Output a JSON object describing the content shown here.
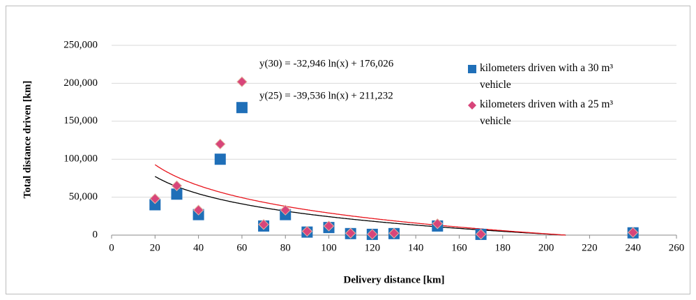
{
  "chart_data": {
    "type": "scatter",
    "xlabel": "Delivery distance [km]",
    "ylabel": "Total distance driven [km]",
    "xlim": [
      0,
      260
    ],
    "xticks": [
      0,
      20,
      40,
      60,
      80,
      100,
      120,
      140,
      160,
      180,
      200,
      220,
      240,
      260
    ],
    "ylim": [
      0,
      250000
    ],
    "yticks": [
      {
        "value": 0,
        "label": "0"
      },
      {
        "value": 50000,
        "label": "50,000"
      },
      {
        "value": 100000,
        "label": "100,000"
      },
      {
        "value": 150000,
        "label": "150,000"
      },
      {
        "value": 200000,
        "label": "200,000"
      },
      {
        "value": 250000,
        "label": "250,000"
      }
    ],
    "grid": true,
    "x": [
      20,
      30,
      40,
      50,
      60,
      70,
      80,
      90,
      100,
      110,
      120,
      130,
      150,
      170,
      240
    ],
    "series": [
      {
        "name": "kilometers driven with a 30 m³ vehicle",
        "color": "#1f6fb8",
        "marker": "square",
        "values": [
          40000,
          54000,
          27000,
          100000,
          168000,
          12000,
          27000,
          4000,
          10000,
          2000,
          1000,
          2000,
          12000,
          1000,
          3000
        ]
      },
      {
        "name": "kilometers driven with a 25 m³ vehicle",
        "color": "#d8457a",
        "marker": "diamond",
        "values": [
          48000,
          65000,
          33000,
          120000,
          202000,
          14000,
          33000,
          5000,
          12000,
          2500,
          1200,
          2500,
          15000,
          1200,
          3500
        ]
      }
    ],
    "trendlines": [
      {
        "label": "y(30) = -32,946 ln(x) + 176,026",
        "slope": -32946,
        "intercept": 176026,
        "color": "#000000"
      },
      {
        "label": "y(25) = -39,536 ln(x) + 211,232",
        "slope": -39536,
        "intercept": 211232,
        "color": "#e8141c"
      }
    ]
  }
}
